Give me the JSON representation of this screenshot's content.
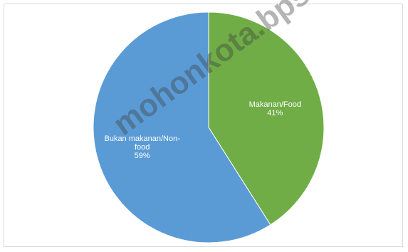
{
  "chart_data": {
    "type": "pie",
    "title": "",
    "slices": [
      {
        "label_line1": "Makanan/Food",
        "label_line2": "",
        "value": 41,
        "value_label": "41%",
        "color": "#70ad47"
      },
      {
        "label_line1": "Bukan makanan/Non-",
        "label_line2": "food",
        "value": 59,
        "value_label": "59%",
        "color": "#5b9bd5"
      }
    ],
    "start_angle_deg": 0,
    "direction": "clockwise"
  },
  "watermark": "mohonkota.bps.go.id"
}
